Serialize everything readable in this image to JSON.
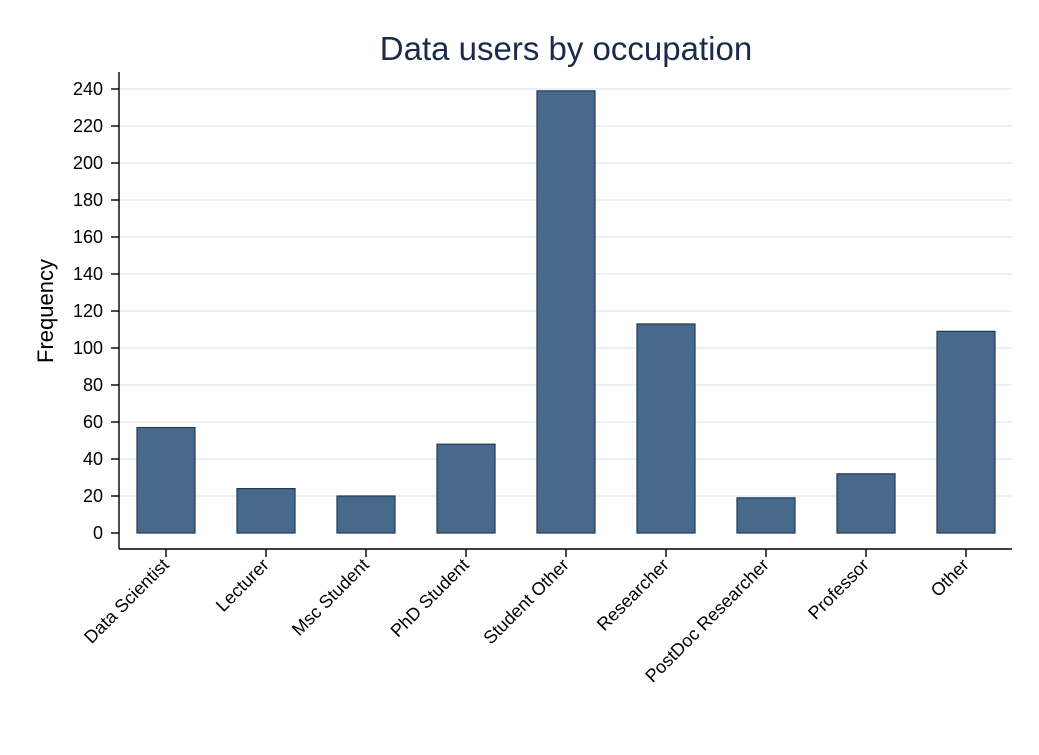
{
  "chart_data": {
    "type": "bar",
    "title": "Data users by occupation",
    "xlabel": "",
    "ylabel": "Frequency",
    "ylim": [
      0,
      240
    ],
    "yticks": [
      0,
      20,
      40,
      60,
      80,
      100,
      120,
      140,
      160,
      180,
      200,
      220,
      240
    ],
    "grid": true,
    "bar_color": "#46698c",
    "categories": [
      "Data Scientist",
      "Lecturer",
      "Msc Student",
      "PhD Student",
      "Student Other",
      "Researcher",
      "PostDoc Researcher",
      "Professor",
      "Other"
    ],
    "values": [
      57,
      24,
      20,
      48,
      239,
      113,
      19,
      32,
      109
    ]
  }
}
